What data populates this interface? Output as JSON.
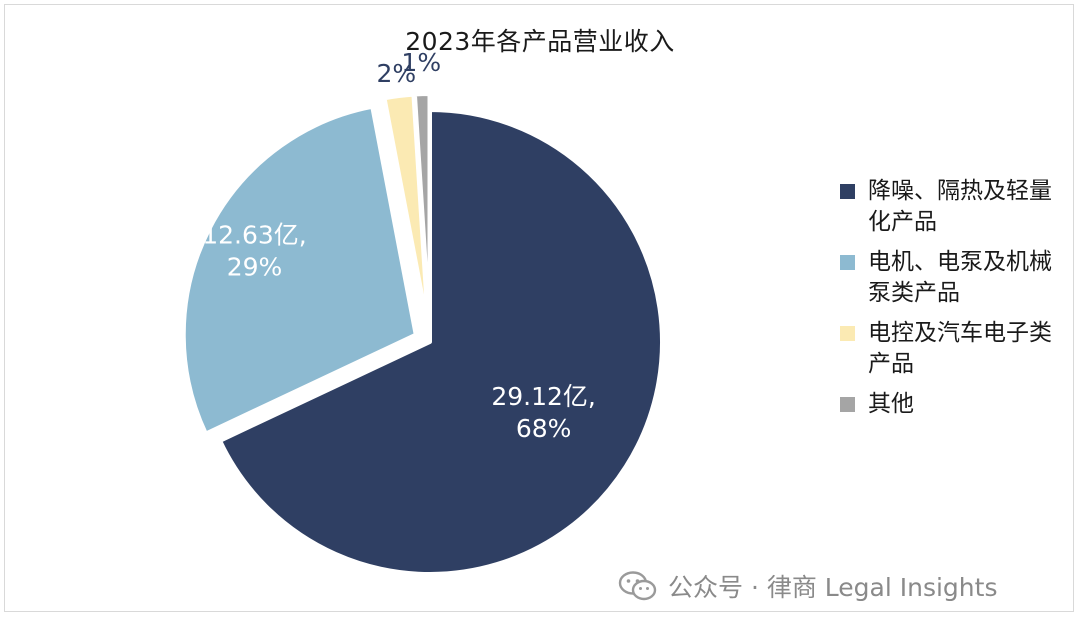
{
  "chart_data": {
    "type": "pie",
    "title": "2023年各产品营业收入",
    "slices": [
      {
        "name": "降噪、隔热及轻量化产品",
        "value": 68,
        "label_line1": "29.12亿,",
        "label_line2": "68%",
        "color": "#2f3f63",
        "exploded": false
      },
      {
        "name": "电机、电泵及机械泵类产品",
        "value": 29,
        "label_line1": "12.63亿,",
        "label_line2": "29%",
        "color": "#8dbad1",
        "exploded": true
      },
      {
        "name": "电控及汽车电子类产品",
        "value": 2,
        "label_line1": "2%",
        "label_line2": "",
        "color": "#fbeab3",
        "exploded": true
      },
      {
        "name": "其他",
        "value": 1,
        "label_line1": "1%",
        "label_line2": "",
        "color": "#a5a5a5",
        "exploded": true
      }
    ],
    "legend_position": "right"
  },
  "legend": {
    "items": [
      {
        "label": "降噪、隔热及轻量化产品",
        "color": "#2f3f63"
      },
      {
        "label": "电机、电泵及机械泵类产品",
        "color": "#8dbad1"
      },
      {
        "label": "电控及汽车电子类产品",
        "color": "#fbeab3"
      },
      {
        "label": "其他",
        "color": "#a5a5a5"
      }
    ]
  },
  "watermark": {
    "icon": "wechat-icon",
    "text": "公众号 · 律商 Legal Insights"
  }
}
